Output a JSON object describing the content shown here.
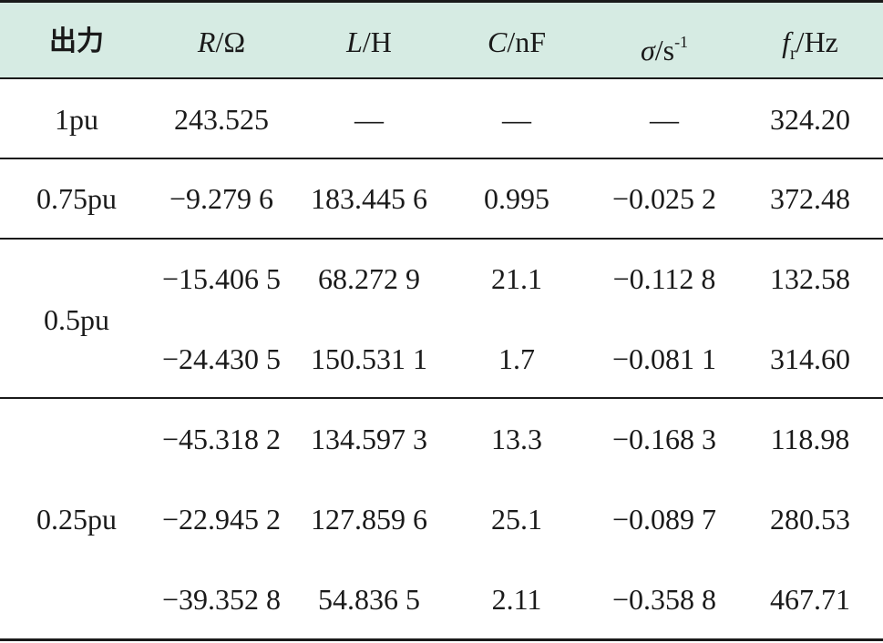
{
  "table": {
    "headers": {
      "col0": "出力",
      "col1_var": "R",
      "col1_unit": "/Ω",
      "col2_var": "L",
      "col2_unit": "/H",
      "col3_var": "C",
      "col3_unit": "/nF",
      "col4_var": "σ",
      "col4_unit": "/s",
      "col4_sup": "-1",
      "col5_var": "f",
      "col5_sub": "r",
      "col5_unit": "/Hz"
    },
    "groups": [
      {
        "label": "1pu",
        "rows": [
          [
            "243.525",
            "—",
            "—",
            "—",
            "324.20"
          ]
        ]
      },
      {
        "label": "0.75pu",
        "rows": [
          [
            "−9.279 6",
            "183.445 6",
            "0.995",
            "−0.025 2",
            "372.48"
          ]
        ]
      },
      {
        "label": "0.5pu",
        "rows": [
          [
            "−15.406 5",
            "68.272 9",
            "21.1",
            "−0.112 8",
            "132.58"
          ],
          [
            "−24.430 5",
            "150.531 1",
            "1.7",
            "−0.081 1",
            "314.60"
          ]
        ]
      },
      {
        "label": "0.25pu",
        "rows": [
          [
            "−45.318 2",
            "134.597 3",
            "13.3",
            "−0.168 3",
            "118.98"
          ],
          [
            "−22.945 2",
            "127.859 6",
            "25.1",
            "−0.089 7",
            "280.53"
          ],
          [
            "−39.352 8",
            "54.836 5",
            "2.11",
            "−0.358 8",
            "467.71"
          ]
        ]
      }
    ]
  }
}
